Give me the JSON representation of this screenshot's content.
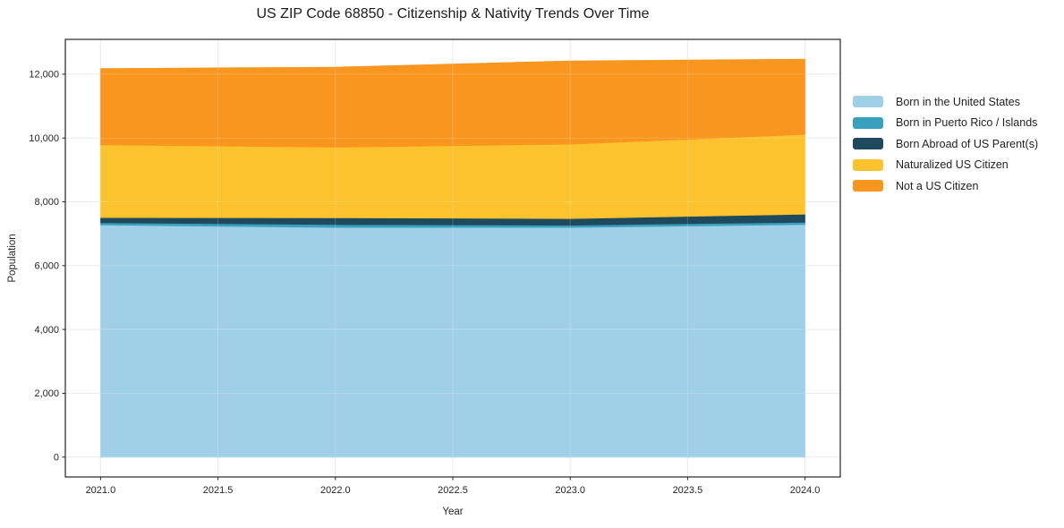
{
  "figure": {
    "kind": "static-chart-image"
  },
  "chart_data": {
    "type": "area",
    "stacked": true,
    "title": "US ZIP Code 68850 - Citizenship & Nativity Trends Over Time",
    "xlabel": "Year",
    "ylabel": "Population",
    "x": [
      2021,
      2022,
      2023,
      2024
    ],
    "series": [
      {
        "name": "Born in the United States",
        "color": "#9fd0e8",
        "values": [
          7280,
          7200,
          7200,
          7290
        ]
      },
      {
        "name": "Born in Puerto Rico / Islands",
        "color": "#3ba0bd",
        "values": [
          70,
          90,
          70,
          75
        ]
      },
      {
        "name": "Born Abroad of US Parent(s)",
        "color": "#1f4a5e",
        "values": [
          160,
          215,
          210,
          250
        ]
      },
      {
        "name": "Naturalized US Citizen",
        "color": "#fdc32f",
        "values": [
          2280,
          2210,
          2330,
          2500
        ]
      },
      {
        "name": "Not a US Citizen",
        "color": "#f8961f",
        "values": [
          2380,
          2500,
          2600,
          2350
        ]
      }
    ],
    "stack_totals": [
      12170,
      12215,
      12410,
      12465
    ],
    "x_ticks": {
      "values": [
        2021.0,
        2021.5,
        2022.0,
        2022.5,
        2023.0,
        2023.5,
        2024.0
      ],
      "labels": [
        "2021.0",
        "2021.5",
        "2022.0",
        "2022.5",
        "2023.0",
        "2023.5",
        "2024.0"
      ]
    },
    "y_ticks": {
      "values": [
        0,
        2000,
        4000,
        6000,
        8000,
        10000,
        12000
      ],
      "labels": [
        "0",
        "2,000",
        "4,000",
        "6,000",
        "8,000",
        "10,000",
        "12,000"
      ]
    },
    "xlim": [
      2020.85,
      2024.15
    ],
    "ylim": [
      -623,
      13090
    ],
    "grid": true,
    "legend_position": "right",
    "colors": {
      "grid": "#e7e7e7",
      "grid_over_area": "rgba(255,255,255,0.18)",
      "spine": "#262626",
      "text": "#262626"
    }
  }
}
